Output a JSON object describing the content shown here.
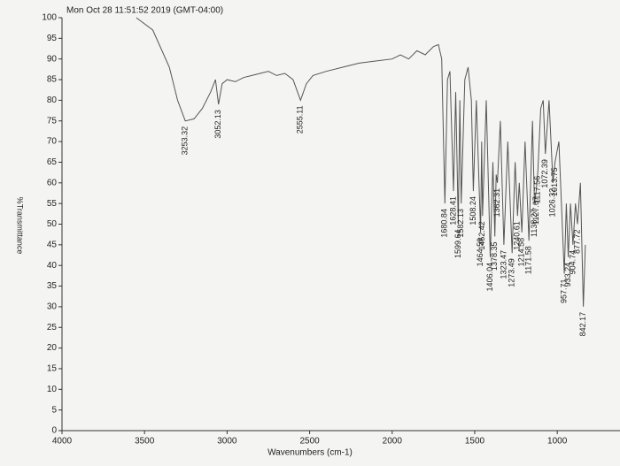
{
  "chart_data": {
    "type": "line",
    "title": "Mon Oct 28 11:51:52 2019 (GMT-04:00)",
    "x_label": "Wavenumbers (cm-1)",
    "y_label": "%Transmittance",
    "xlim": [
      4000,
      620
    ],
    "ylim": [
      0,
      100
    ],
    "xticks": [
      4000,
      3500,
      3000,
      2500,
      2000,
      1500,
      1000
    ],
    "yticks": [
      0,
      5,
      10,
      15,
      20,
      25,
      30,
      35,
      40,
      45,
      50,
      55,
      60,
      65,
      70,
      75,
      80,
      85,
      90,
      95,
      100
    ],
    "series": [
      {
        "color": "#555555",
        "x": [
          3550,
          3450,
          3350,
          3300,
          3253.32,
          3200,
          3150,
          3100,
          3070,
          3052.13,
          3030,
          3000,
          2950,
          2900,
          2850,
          2800,
          2750,
          2700,
          2650,
          2600,
          2555.11,
          2520,
          2480,
          2400,
          2300,
          2200,
          2100,
          2000,
          1950,
          1900,
          1850,
          1800,
          1750,
          1720,
          1700,
          1680.84,
          1665,
          1650,
          1628.41,
          1615,
          1599.64,
          1590,
          1582.13,
          1560,
          1540,
          1520,
          1508.24,
          1490,
          1464.59,
          1458,
          1452.42,
          1430,
          1406.04,
          1390,
          1378.35,
          1370,
          1362.31,
          1345,
          1323.47,
          1300,
          1273.49,
          1255,
          1240.61,
          1230,
          1214.58,
          1195,
          1171.58,
          1150,
          1138.27,
          1127.67,
          1117.56,
          1100,
          1085,
          1072.39,
          1050,
          1026.32,
          1013.75,
          990,
          957.71,
          945,
          933.24,
          920,
          904.74,
          890,
          877.72,
          860,
          842.17,
          830
        ],
        "values": [
          100,
          97,
          88,
          80,
          75,
          75.5,
          78,
          82,
          85,
          79,
          84,
          85,
          84.5,
          85.5,
          86,
          86.5,
          87,
          86,
          86.5,
          85,
          80,
          84,
          86,
          87,
          88,
          89,
          89.5,
          90,
          91,
          90,
          92,
          91,
          93,
          93.5,
          90,
          55,
          85,
          87,
          58,
          82,
          50,
          80,
          55,
          85,
          88,
          80,
          58,
          80,
          48,
          70,
          52,
          80,
          42,
          65,
          47,
          62,
          60,
          75,
          45,
          70,
          43,
          65,
          52,
          60,
          48,
          70,
          46,
          75,
          55,
          58,
          63,
          78,
          80,
          67,
          80,
          60,
          65,
          70,
          38,
          55,
          42,
          55,
          45,
          55,
          50,
          60,
          30,
          45
        ]
      }
    ],
    "peaks": [
      3253.32,
      3052.13,
      2555.11,
      1680.84,
      1628.41,
      1599.64,
      1582.13,
      1508.24,
      1464.59,
      1452.42,
      1406.04,
      1378.35,
      1362.31,
      1323.47,
      1273.49,
      1240.61,
      1214.58,
      1171.58,
      1138.27,
      1127.67,
      1117.56,
      1072.39,
      1026.32,
      1013.75,
      957.71,
      933.24,
      904.74,
      877.72,
      842.17
    ]
  }
}
